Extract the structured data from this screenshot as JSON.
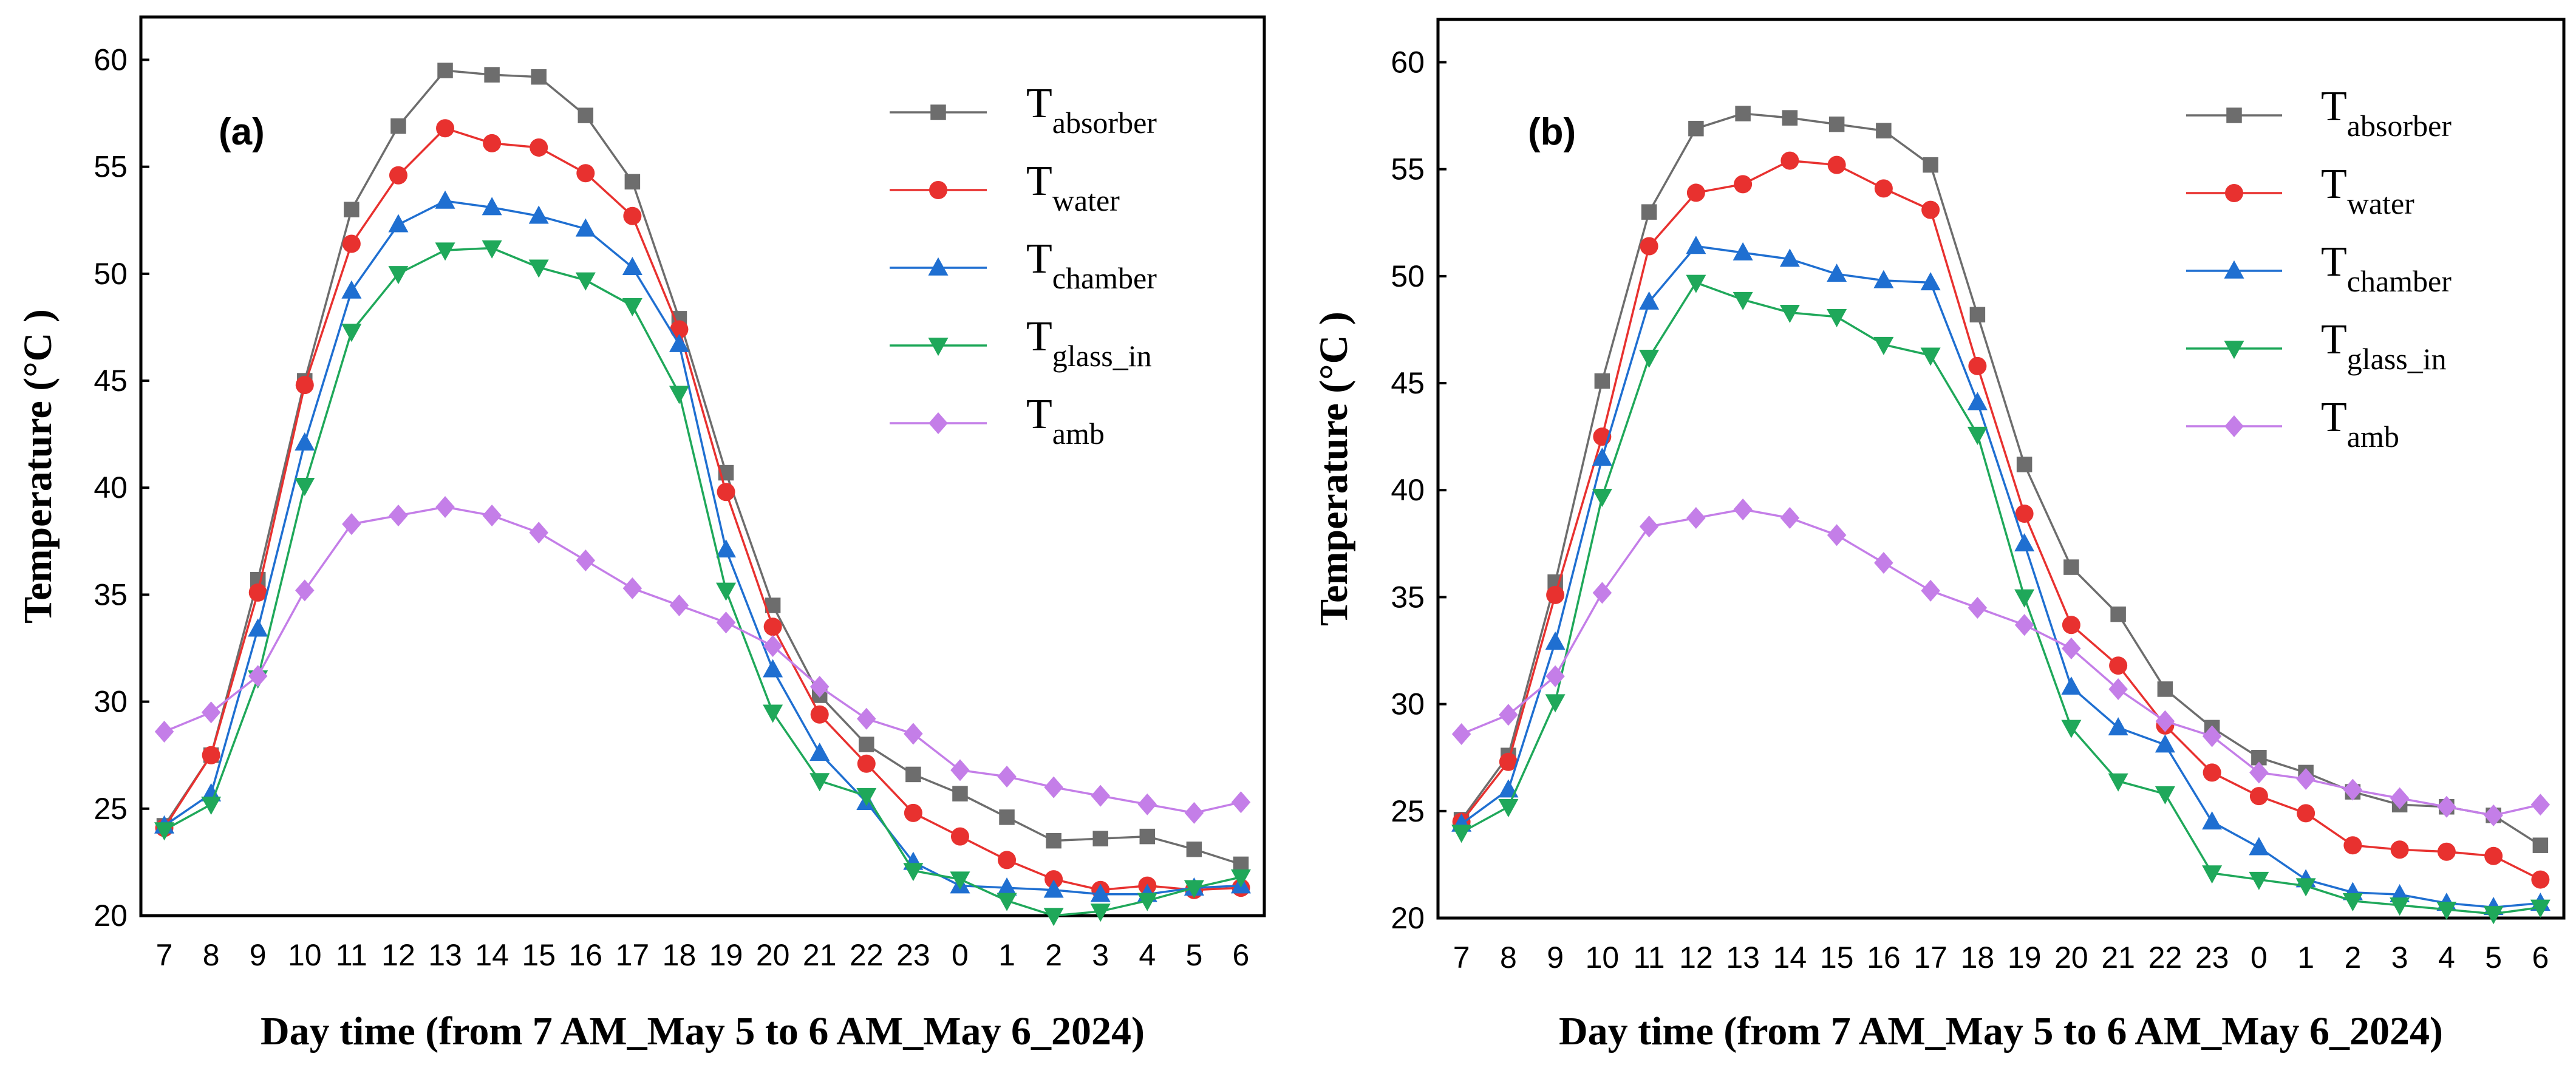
{
  "chart_data": [
    {
      "type": "line",
      "panel_label": "(a)",
      "xlabel": "Day time (from 7 AM_May 5 to 6 AM_May 6_2024)",
      "ylabel": "Temperature (°C )",
      "ylim": [
        20,
        62
      ],
      "yticks": [
        20,
        25,
        30,
        35,
        40,
        45,
        50,
        55,
        60
      ],
      "categories": [
        "7",
        "8",
        "9",
        "10",
        "11",
        "12",
        "13",
        "14",
        "15",
        "16",
        "17",
        "18",
        "19",
        "20",
        "21",
        "22",
        "23",
        "0",
        "1",
        "2",
        "3",
        "4",
        "5",
        "6"
      ],
      "legend_position": "top-right",
      "series": [
        {
          "name": "T",
          "subscript": "absorber",
          "color": "#6d6d6d",
          "marker": "square",
          "values": [
            24.2,
            27.5,
            35.7,
            45.0,
            53.0,
            56.9,
            59.5,
            59.3,
            59.2,
            57.4,
            54.3,
            47.9,
            40.7,
            34.5,
            30.3,
            28.0,
            26.6,
            25.7,
            24.6,
            23.5,
            23.6,
            23.7,
            23.1,
            22.4
          ]
        },
        {
          "name": "T",
          "subscript": "water",
          "color": "#e8312f",
          "marker": "circle",
          "values": [
            24.1,
            27.5,
            35.1,
            44.8,
            51.4,
            54.6,
            56.8,
            56.1,
            55.9,
            54.7,
            52.7,
            47.4,
            39.8,
            33.5,
            29.4,
            27.1,
            24.8,
            23.7,
            22.6,
            21.7,
            21.2,
            21.4,
            21.2,
            21.3
          ]
        },
        {
          "name": "T",
          "subscript": "chamber",
          "color": "#1f6fd1",
          "marker": "triangle-up",
          "values": [
            24.2,
            25.7,
            33.4,
            42.1,
            49.2,
            52.3,
            53.4,
            53.1,
            52.7,
            52.1,
            50.3,
            46.7,
            37.1,
            31.5,
            27.6,
            25.3,
            22.5,
            21.4,
            21.3,
            21.2,
            21.0,
            21.0,
            21.3,
            21.4
          ]
        },
        {
          "name": "T",
          "subscript": "glass_in",
          "color": "#1fa85a",
          "marker": "triangle-down",
          "values": [
            24.0,
            25.2,
            31.1,
            40.1,
            47.3,
            50.0,
            51.1,
            51.2,
            50.3,
            49.7,
            48.5,
            44.4,
            35.2,
            29.5,
            26.3,
            25.6,
            22.1,
            21.7,
            20.7,
            20.0,
            20.2,
            20.7,
            21.3,
            21.8
          ]
        },
        {
          "name": "T",
          "subscript": "amb",
          "color": "#c47ee8",
          "marker": "diamond",
          "values": [
            28.6,
            29.5,
            31.2,
            35.2,
            38.3,
            38.7,
            39.1,
            38.7,
            37.9,
            36.6,
            35.3,
            34.5,
            33.7,
            32.6,
            30.7,
            29.2,
            28.5,
            26.8,
            26.5,
            26.0,
            25.6,
            25.2,
            24.8,
            25.3
          ]
        }
      ]
    },
    {
      "type": "line",
      "panel_label": "(b)",
      "xlabel": "Day time (from 7 AM_May 5 to 6 AM_May 6_2024)",
      "ylabel": "Temperature (°C )",
      "ylim": [
        20,
        62
      ],
      "yticks": [
        20,
        25,
        30,
        35,
        40,
        45,
        50,
        55,
        60
      ],
      "categories": [
        "7",
        "8",
        "9",
        "10",
        "11",
        "12",
        "13",
        "14",
        "15",
        "16",
        "17",
        "18",
        "19",
        "20",
        "21",
        "22",
        "23",
        "0",
        "1",
        "2",
        "3",
        "4",
        "5",
        "6"
      ],
      "legend_position": "top-right",
      "series": [
        {
          "name": "T",
          "subscript": "absorber",
          "color": "#6d6d6d",
          "marker": "square",
          "values": [
            24.6,
            27.6,
            35.7,
            45.1,
            53.0,
            56.9,
            57.6,
            57.4,
            57.1,
            56.8,
            55.2,
            48.2,
            41.2,
            36.4,
            34.2,
            30.7,
            28.9,
            27.5,
            26.8,
            25.9,
            25.3,
            25.2,
            24.8,
            23.4
          ]
        },
        {
          "name": "T",
          "subscript": "water",
          "color": "#e8312f",
          "marker": "circle",
          "values": [
            24.5,
            27.3,
            35.1,
            42.5,
            51.4,
            53.9,
            54.3,
            55.4,
            55.2,
            54.1,
            53.1,
            45.8,
            38.9,
            33.7,
            31.8,
            29.0,
            26.8,
            25.7,
            24.9,
            23.4,
            23.2,
            23.1,
            22.9,
            21.8
          ]
        },
        {
          "name": "T",
          "subscript": "chamber",
          "color": "#1f6fd1",
          "marker": "triangle-up",
          "values": [
            24.4,
            26.0,
            32.9,
            41.5,
            48.8,
            51.4,
            51.1,
            50.8,
            50.1,
            49.8,
            49.7,
            44.1,
            37.5,
            30.8,
            28.9,
            28.1,
            24.5,
            23.3,
            21.8,
            21.2,
            21.1,
            20.7,
            20.5,
            20.7
          ]
        },
        {
          "name": "T",
          "subscript": "glass_in",
          "color": "#1fa85a",
          "marker": "triangle-down",
          "values": [
            24.0,
            25.2,
            30.1,
            39.7,
            46.2,
            49.7,
            48.9,
            48.3,
            48.1,
            46.8,
            46.3,
            42.6,
            35.0,
            28.9,
            26.4,
            25.8,
            22.1,
            21.8,
            21.5,
            20.8,
            20.6,
            20.4,
            20.2,
            20.5
          ]
        },
        {
          "name": "T",
          "subscript": "amb",
          "color": "#c47ee8",
          "marker": "diamond",
          "values": [
            28.6,
            29.5,
            31.3,
            35.2,
            38.3,
            38.7,
            39.1,
            38.7,
            37.9,
            36.6,
            35.3,
            34.5,
            33.7,
            32.6,
            30.7,
            29.2,
            28.5,
            26.8,
            26.5,
            26.0,
            25.6,
            25.2,
            24.8,
            25.3
          ]
        }
      ]
    }
  ]
}
